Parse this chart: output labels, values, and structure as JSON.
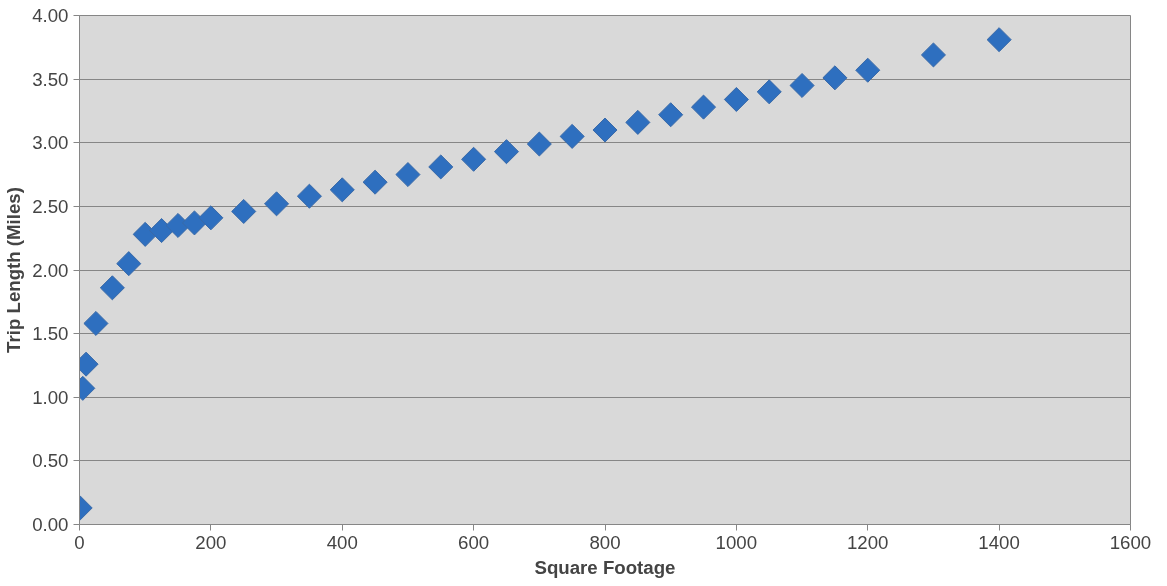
{
  "chart_data": {
    "type": "scatter",
    "xlabel": "Square Footage",
    "ylabel": "Trip Length (Miles)",
    "x": [
      1,
      5,
      10,
      25,
      50,
      75,
      100,
      125,
      150,
      175,
      200,
      250,
      300,
      350,
      400,
      450,
      500,
      550,
      600,
      650,
      700,
      750,
      800,
      850,
      900,
      950,
      1000,
      1050,
      1100,
      1150,
      1200,
      1300,
      1400
    ],
    "series": [
      {
        "color": "#2e6fbf",
        "values": [
          0.13,
          1.07,
          1.26,
          1.58,
          1.86,
          2.05,
          2.28,
          2.31,
          2.35,
          2.37,
          2.41,
          2.46,
          2.52,
          2.58,
          2.63,
          2.69,
          2.75,
          2.81,
          2.87,
          2.93,
          2.99,
          3.05,
          3.1,
          3.16,
          3.22,
          3.28,
          3.34,
          3.4,
          3.45,
          3.51,
          3.57,
          3.69,
          3.81
        ]
      }
    ],
    "xlim": [
      0,
      1600
    ],
    "xticks": [
      0,
      200,
      400,
      600,
      800,
      1000,
      1200,
      1400,
      1600
    ],
    "ylim": [
      0,
      4
    ],
    "yticks": [
      {
        "value": 0,
        "label": "0.00"
      },
      {
        "value": 0.5,
        "label": "0.50"
      },
      {
        "value": 1,
        "label": "1.00"
      },
      {
        "value": 1.5,
        "label": "1.50"
      },
      {
        "value": 2,
        "label": "2.00"
      },
      {
        "value": 2.5,
        "label": "2.50"
      },
      {
        "value": 3,
        "label": "3.00"
      },
      {
        "value": 3.5,
        "label": "3.50"
      },
      {
        "value": 4,
        "label": "4.00"
      }
    ],
    "grid": "y",
    "marker": "diamond"
  }
}
